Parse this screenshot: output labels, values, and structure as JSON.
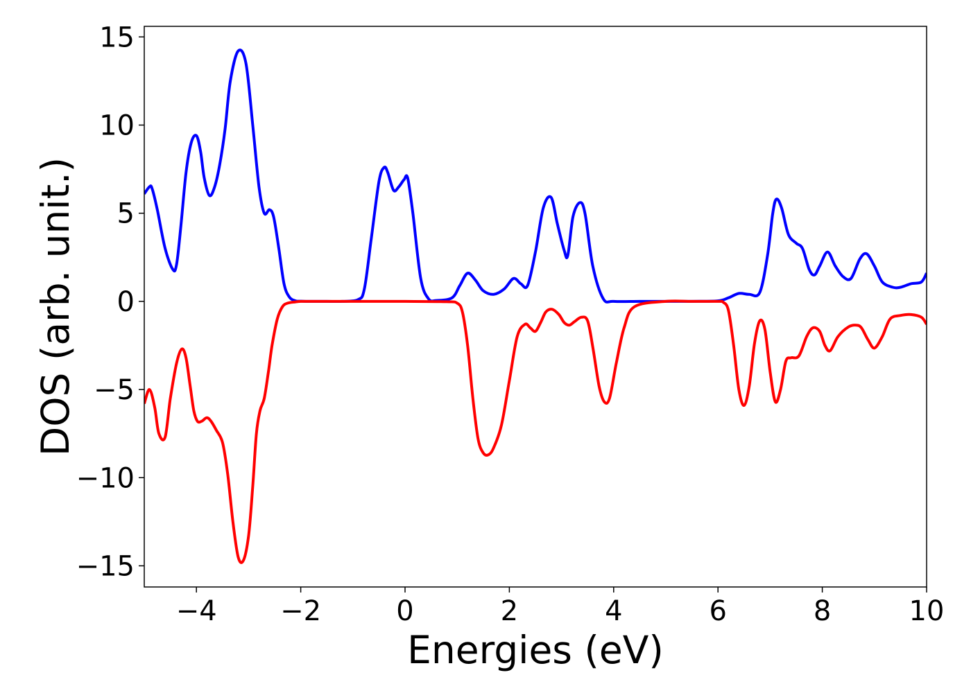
{
  "chart_data": {
    "type": "line",
    "title": "",
    "xlabel": "Energies (eV)",
    "ylabel": "DOS (arb. unit.)",
    "xlim": [
      -5,
      10
    ],
    "ylim": [
      -16.2,
      15.6
    ],
    "xticks": [
      -4,
      -2,
      0,
      2,
      4,
      6,
      8,
      10
    ],
    "xtick_labels": [
      "−4",
      "−2",
      "0",
      "2",
      "4",
      "6",
      "8",
      "10"
    ],
    "yticks": [
      15,
      10,
      5,
      0,
      -5,
      -10,
      -15
    ],
    "ytick_labels": [
      "15",
      "10",
      "5",
      "0",
      "−5",
      "−10",
      "−15"
    ],
    "grid": false,
    "legend": "none",
    "series": [
      {
        "color": "#0000ff",
        "x": [
          -5.0,
          -4.9,
          -4.85,
          -4.75,
          -4.6,
          -4.45,
          -4.38,
          -4.3,
          -4.2,
          -4.1,
          -4.0,
          -3.92,
          -3.85,
          -3.75,
          -3.65,
          -3.55,
          -3.45,
          -3.35,
          -3.2,
          -3.05,
          -2.92,
          -2.8,
          -2.7,
          -2.6,
          -2.52,
          -2.42,
          -2.32,
          -2.22,
          -2.1,
          -2.0,
          -1.9,
          -1.8,
          -1.5,
          -1.2,
          -0.9,
          -0.78,
          -0.65,
          -0.5,
          -0.4,
          -0.33,
          -0.22,
          -0.12,
          -0.02,
          0.05,
          0.15,
          0.3,
          0.45,
          0.6,
          0.9,
          1.05,
          1.2,
          1.35,
          1.5,
          1.7,
          1.9,
          2.08,
          2.22,
          2.35,
          2.5,
          2.65,
          2.8,
          2.92,
          3.05,
          3.12,
          3.22,
          3.35,
          3.45,
          3.6,
          3.8,
          4.0,
          4.5,
          5.0,
          5.5,
          6.0,
          6.2,
          6.4,
          6.6,
          6.8,
          6.95,
          7.05,
          7.12,
          7.22,
          7.35,
          7.5,
          7.62,
          7.75,
          7.85,
          7.95,
          8.1,
          8.25,
          8.4,
          8.55,
          8.72,
          8.85,
          9.0,
          9.15,
          9.35,
          9.5,
          9.7,
          9.9,
          10.0
        ],
        "y": [
          6.1,
          6.5,
          6.4,
          5.2,
          3.0,
          1.8,
          2.1,
          4.2,
          7.3,
          9.0,
          9.4,
          8.5,
          7.0,
          6.0,
          6.5,
          7.8,
          9.8,
          12.5,
          14.2,
          13.5,
          10.0,
          6.5,
          5.0,
          5.2,
          4.8,
          3.0,
          1.0,
          0.25,
          0.03,
          0.01,
          0.0,
          0.0,
          0.0,
          0.0,
          0.1,
          0.7,
          3.5,
          6.8,
          7.6,
          7.3,
          6.3,
          6.5,
          6.9,
          7.0,
          5.0,
          1.3,
          0.15,
          0.05,
          0.2,
          0.9,
          1.6,
          1.2,
          0.6,
          0.4,
          0.7,
          1.3,
          1.0,
          0.9,
          2.8,
          5.3,
          5.9,
          4.4,
          2.9,
          2.6,
          4.8,
          5.6,
          5.0,
          2.0,
          0.15,
          0.0,
          0.0,
          0.0,
          0.0,
          0.03,
          0.2,
          0.45,
          0.4,
          0.5,
          2.6,
          5.0,
          5.8,
          5.3,
          3.8,
          3.3,
          3.0,
          1.8,
          1.5,
          2.0,
          2.8,
          2.0,
          1.4,
          1.3,
          2.4,
          2.7,
          2.0,
          1.1,
          0.8,
          0.8,
          1.0,
          1.1,
          1.6
        ]
      },
      {
        "color": "#ff0000",
        "x": [
          -5.0,
          -4.9,
          -4.8,
          -4.72,
          -4.6,
          -4.5,
          -4.38,
          -4.28,
          -4.2,
          -4.12,
          -4.05,
          -3.98,
          -3.9,
          -3.8,
          -3.72,
          -3.62,
          -3.5,
          -3.4,
          -3.3,
          -3.2,
          -3.1,
          -3.0,
          -2.92,
          -2.85,
          -2.78,
          -2.7,
          -2.62,
          -2.55,
          -2.45,
          -2.35,
          -2.25,
          -2.1,
          -2.0,
          -1.9,
          -1.8,
          -1.5,
          -1.0,
          0.0,
          0.8,
          1.0,
          1.1,
          1.2,
          1.3,
          1.4,
          1.5,
          1.6,
          1.7,
          1.85,
          2.0,
          2.15,
          2.3,
          2.4,
          2.5,
          2.6,
          2.7,
          2.82,
          2.95,
          3.05,
          3.15,
          3.25,
          3.38,
          3.5,
          3.6,
          3.72,
          3.82,
          3.92,
          4.05,
          4.2,
          4.4,
          5.0,
          5.5,
          6.0,
          6.1,
          6.2,
          6.3,
          6.4,
          6.5,
          6.6,
          6.7,
          6.8,
          6.9,
          7.0,
          7.1,
          7.2,
          7.3,
          7.4,
          7.55,
          7.7,
          7.82,
          7.95,
          8.05,
          8.15,
          8.3,
          8.5,
          8.65,
          8.75,
          8.88,
          9.0,
          9.15,
          9.3,
          9.5,
          9.7,
          9.9,
          10.0
        ],
        "y": [
          -5.8,
          -5.0,
          -6.0,
          -7.5,
          -7.7,
          -5.5,
          -3.5,
          -2.7,
          -3.2,
          -4.8,
          -6.2,
          -6.8,
          -6.8,
          -6.6,
          -6.8,
          -7.3,
          -8.0,
          -9.8,
          -12.5,
          -14.5,
          -14.7,
          -13.3,
          -10.5,
          -7.5,
          -6.2,
          -5.5,
          -4.0,
          -2.5,
          -1.0,
          -0.3,
          -0.1,
          -0.03,
          0.0,
          0.0,
          0.0,
          0.0,
          0.0,
          0.0,
          -0.02,
          -0.1,
          -0.6,
          -2.5,
          -5.5,
          -7.8,
          -8.6,
          -8.7,
          -8.3,
          -7.0,
          -4.5,
          -2.0,
          -1.3,
          -1.5,
          -1.7,
          -1.2,
          -0.6,
          -0.45,
          -0.75,
          -1.2,
          -1.35,
          -1.15,
          -0.9,
          -1.1,
          -2.6,
          -4.8,
          -5.7,
          -5.5,
          -3.5,
          -1.5,
          -0.3,
          0.0,
          0.0,
          0.0,
          -0.05,
          -0.5,
          -2.5,
          -5.0,
          -5.9,
          -4.8,
          -2.4,
          -1.1,
          -1.6,
          -4.0,
          -5.7,
          -5.0,
          -3.4,
          -3.2,
          -3.1,
          -2.0,
          -1.5,
          -1.7,
          -2.5,
          -2.8,
          -2.0,
          -1.45,
          -1.35,
          -1.5,
          -2.2,
          -2.65,
          -2.0,
          -1.0,
          -0.8,
          -0.75,
          -0.9,
          -1.3
        ]
      }
    ]
  }
}
